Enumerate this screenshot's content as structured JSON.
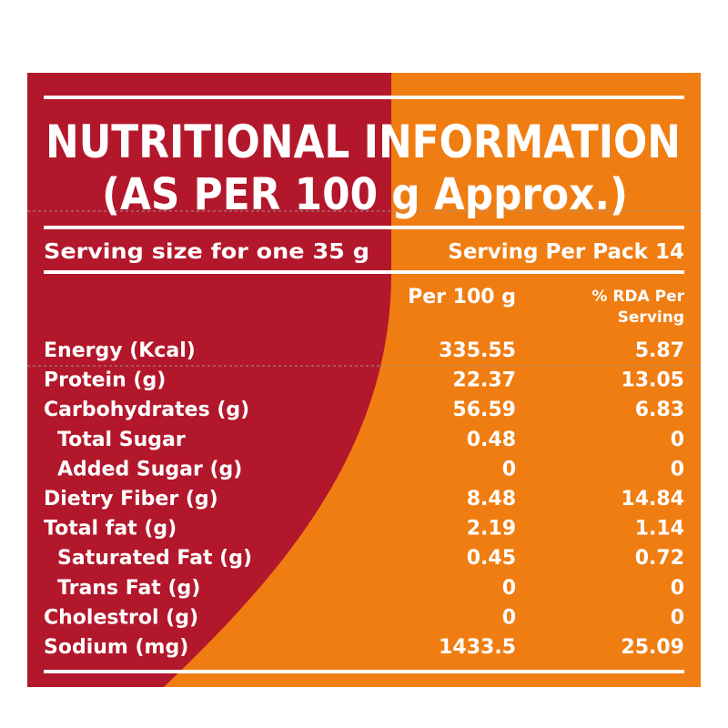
{
  "title": [
    "NUTRITIONAL INFORMATION",
    "(AS PER 100 g Approx.)"
  ],
  "serving": {
    "left": "Serving size for one 35 g",
    "right": "Serving Per Pack 14"
  },
  "header": {
    "per100": "Per 100 g",
    "rda": [
      "% RDA Per",
      "Serving"
    ]
  },
  "table": {
    "rows": [
      [
        "Energy (Kcal)",
        "335.55",
        "5.87"
      ],
      [
        "Protein (g)",
        "22.37",
        "13.05"
      ],
      [
        "Carbohydrates (g)",
        "56.59",
        "6.83"
      ],
      [
        "Total Sugar",
        "0.48",
        "0"
      ],
      [
        "Added Sugar (g)",
        "0",
        "0"
      ],
      [
        "Dietry Fiber (g)",
        "8.48",
        "14.84"
      ],
      [
        "Total fat (g)",
        "2.19",
        "1.14"
      ],
      [
        "Saturated Fat (g)",
        "0.45",
        "0.72"
      ],
      [
        "Trans Fat (g)",
        "0",
        "0"
      ],
      [
        "Cholestrol (g)",
        "0",
        "0"
      ],
      [
        "Sodium (mg)",
        "1433.5",
        "25.09"
      ]
    ]
  }
}
